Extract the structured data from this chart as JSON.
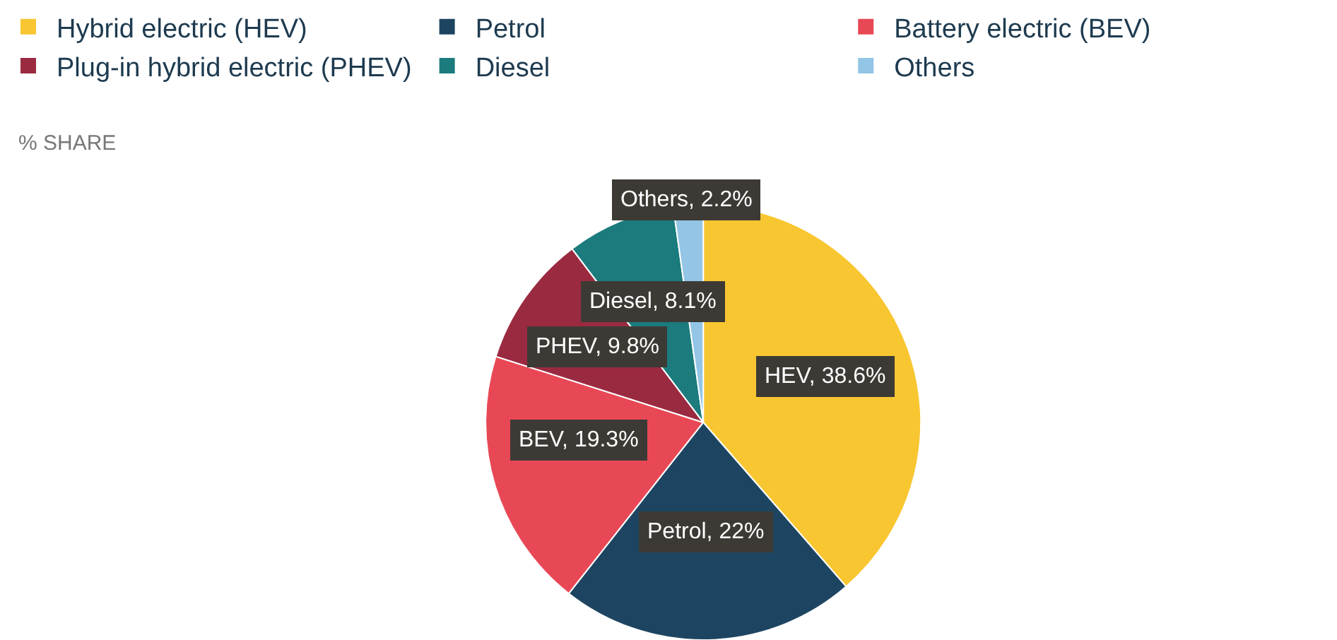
{
  "chart_data": {
    "type": "pie",
    "subtitle": "% SHARE",
    "categories": [
      "Hybrid electric (HEV)",
      "Petrol",
      "Battery electric (BEV)",
      "Plug-in hybrid electric (PHEV)",
      "Diesel",
      "Others"
    ],
    "values": [
      38.6,
      22,
      19.3,
      9.8,
      8.1,
      2.2
    ],
    "colors": [
      "#f8c630",
      "#1d4561",
      "#e84855",
      "#9a2a40",
      "#1b7b7d",
      "#93c5e6"
    ],
    "value_labels": [
      "HEV, 38.6%",
      "Petrol, 22%",
      "BEV, 19.3%",
      "PHEV, 9.8%",
      "Diesel, 8.1%",
      "Others, 2.2%"
    ],
    "legend": "top left"
  }
}
